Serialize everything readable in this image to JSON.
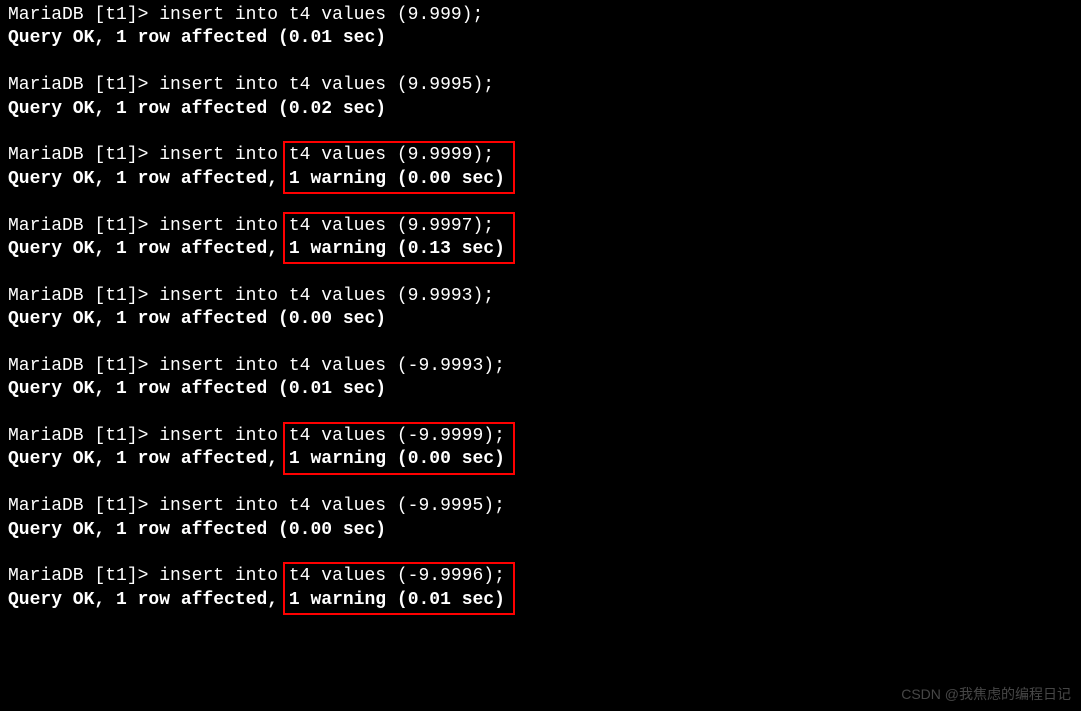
{
  "prompt": "MariaDB [t1]> ",
  "blocks": [
    {
      "cmd": "insert into t4 values (9.999);",
      "result_prefix": "Query OK, 1 row affected ",
      "result_suffix": "(0.01 sec)",
      "warning": null,
      "highlight": false
    },
    {
      "cmd": "insert into t4 values (9.9995);",
      "result_prefix": "Query OK, 1 row affected ",
      "result_suffix": "(0.02 sec)",
      "warning": null,
      "highlight": false
    },
    {
      "cmd": "insert into t4 values (9.9999);",
      "result_prefix": "Query OK, 1 row affected, ",
      "result_suffix": "(0.00 sec)",
      "warning": "1 warning ",
      "highlight": true
    },
    {
      "cmd": "insert into t4 values (9.9997);",
      "result_prefix": "Query OK, 1 row affected, ",
      "result_suffix": "(0.13 sec)",
      "warning": "1 warning ",
      "highlight": true
    },
    {
      "cmd": "insert into t4 values (9.9993);",
      "result_prefix": "Query OK, 1 row affected ",
      "result_suffix": "(0.00 sec)",
      "warning": null,
      "highlight": false
    },
    {
      "cmd": "insert into t4 values (-9.9993);",
      "result_prefix": "Query OK, 1 row affected ",
      "result_suffix": "(0.01 sec)",
      "warning": null,
      "highlight": false
    },
    {
      "cmd": "insert into t4 values (-9.9999);",
      "result_prefix": "Query OK, 1 row affected, ",
      "result_suffix": "(0.00 sec)",
      "warning": "1 warning ",
      "highlight": true
    },
    {
      "cmd": "insert into t4 values (-9.9995);",
      "result_prefix": "Query OK, 1 row affected ",
      "result_suffix": "(0.00 sec)",
      "warning": null,
      "highlight": false
    },
    {
      "cmd": "insert into t4 values (-9.9996);",
      "result_prefix": "Query OK, 1 row affected, ",
      "result_suffix": "(0.01 sec)",
      "warning": "1 warning ",
      "highlight": true
    }
  ],
  "highlight_color": "#ff0000",
  "background_color": "#000000",
  "text_color": "#ffffff",
  "watermark": "CSDN @我焦虑的编程日记"
}
